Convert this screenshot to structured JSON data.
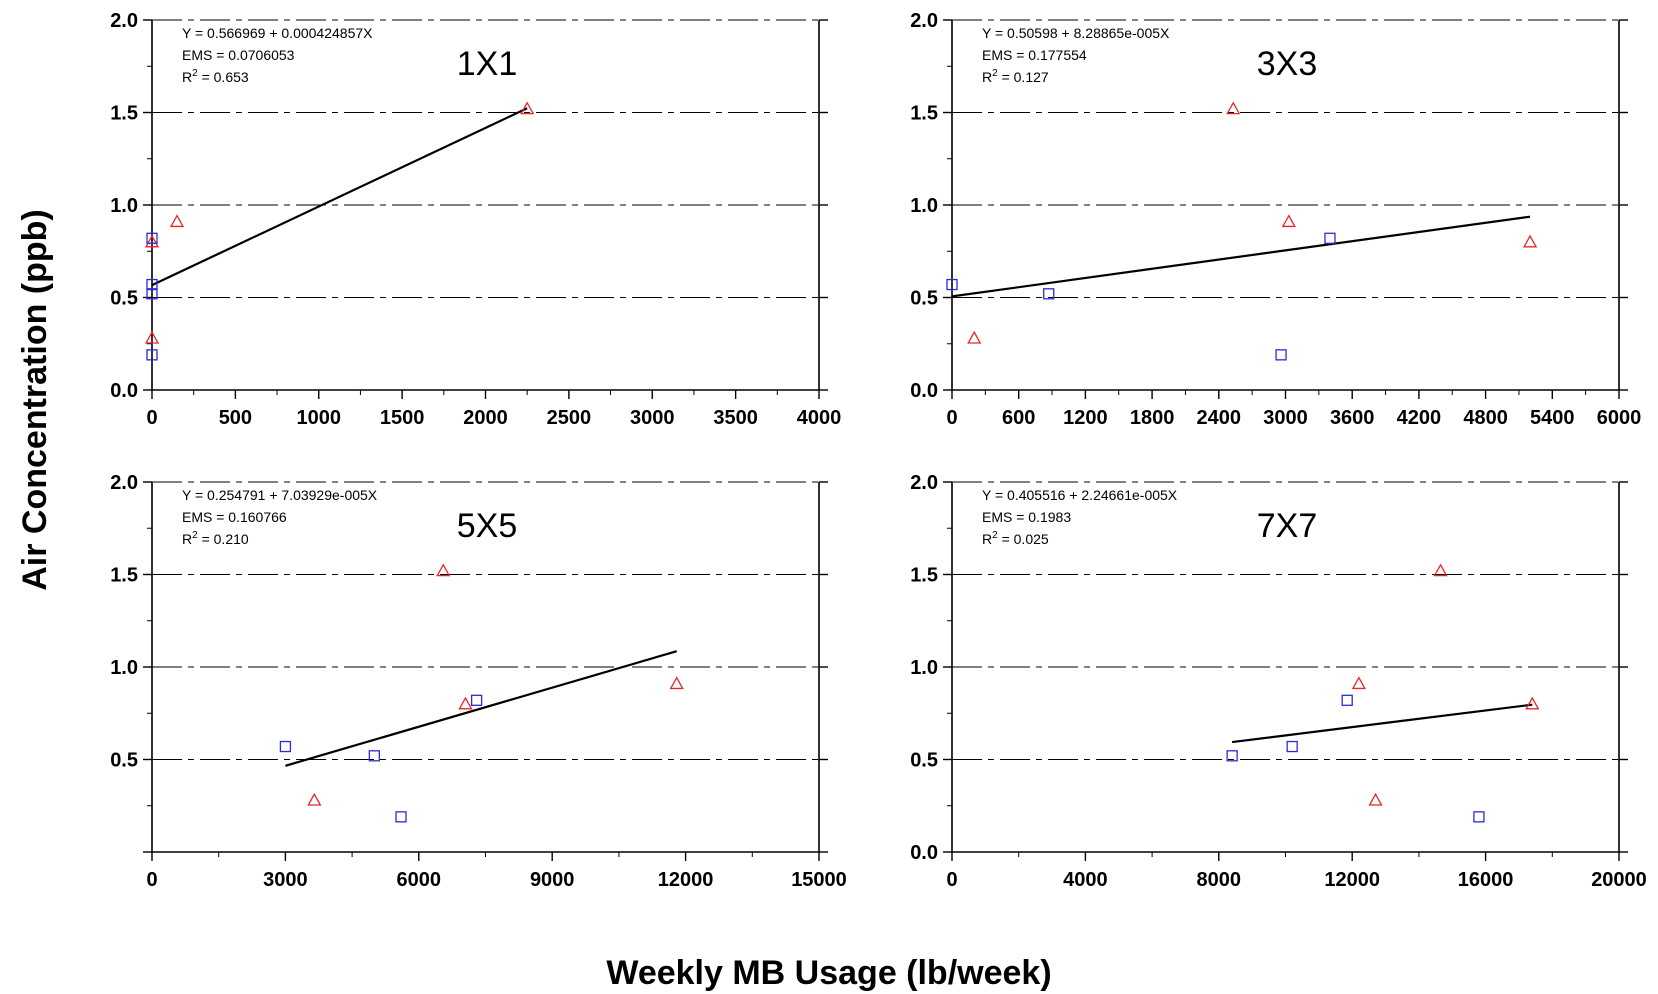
{
  "figure": {
    "ylabel": "Air Concentration (ppb)",
    "xlabel": "Weekly MB Usage (lb/week)"
  },
  "chart_data": [
    {
      "type": "scatter",
      "title": "1X1",
      "equation": "Y = 0.566969 + 0.000424857X",
      "ems": "EMS = 0.0706053",
      "r2_prefix": "R",
      "r2_sup": "2",
      "r2_value": " = 0.653",
      "xlim": [
        0,
        4000
      ],
      "ylim": [
        0,
        2
      ],
      "xticks": [
        0,
        500,
        1000,
        1500,
        2000,
        2500,
        3000,
        3500,
        4000
      ],
      "xtick_labels": [
        "0",
        "500",
        "1000",
        "1500",
        "2000",
        "2500",
        "3000",
        "3500",
        "4000"
      ],
      "yticks": [
        0,
        0.5,
        1,
        1.5,
        2
      ],
      "ytick_labels": [
        "0.0",
        "0.5",
        "1.0",
        "1.5",
        "2.0"
      ],
      "grid": "dashed horizontal",
      "triangles": {
        "color": "#e8262a",
        "points": [
          [
            0,
            0.8
          ],
          [
            150,
            0.91
          ],
          [
            0,
            0.28
          ],
          [
            2250,
            1.52
          ]
        ]
      },
      "squares": {
        "color": "#2b2bd8",
        "points": [
          [
            0,
            0.82
          ],
          [
            0,
            0.57
          ],
          [
            0,
            0.52
          ],
          [
            0,
            0.19
          ]
        ]
      },
      "fit": {
        "intercept": 0.566969,
        "slope": 0.000424857,
        "x_range": [
          0,
          2250
        ]
      }
    },
    {
      "type": "scatter",
      "title": "3X3",
      "equation": "Y = 0.50598 + 8.28865e-005X",
      "ems": "EMS = 0.177554",
      "r2_prefix": "R",
      "r2_sup": "2",
      "r2_value": " = 0.127",
      "xlim": [
        0,
        6000
      ],
      "ylim": [
        0,
        2
      ],
      "xticks": [
        0,
        600,
        1200,
        1800,
        2400,
        3000,
        3600,
        4200,
        4800,
        5400,
        6000
      ],
      "xtick_labels": [
        "0",
        "600",
        "1200",
        "1800",
        "2400",
        "3000",
        "3600",
        "4200",
        "4800",
        "5400",
        "6000"
      ],
      "yticks": [
        0,
        0.5,
        1,
        1.5,
        2
      ],
      "ytick_labels": [
        "0.0",
        "0.5",
        "1.0",
        "1.5",
        "2.0"
      ],
      "grid": "dashed horizontal",
      "triangles": {
        "color": "#e8262a",
        "points": [
          [
            2530,
            1.52
          ],
          [
            3030,
            0.91
          ],
          [
            5200,
            0.8
          ],
          [
            200,
            0.28
          ]
        ]
      },
      "squares": {
        "color": "#2b2bd8",
        "points": [
          [
            3400,
            0.82
          ],
          [
            0,
            0.57
          ],
          [
            870,
            0.52
          ],
          [
            2960,
            0.19
          ]
        ]
      },
      "fit": {
        "intercept": 0.50598,
        "slope": 8.28865e-05,
        "x_range": [
          0,
          5200
        ]
      }
    },
    {
      "type": "scatter",
      "title": "5X5",
      "equation": "Y = 0.254791 + 7.03929e-005X",
      "ems": "EMS = 0.160766",
      "r2_prefix": "R",
      "r2_sup": "2",
      "r2_value": " = 0.210",
      "xlim": [
        0,
        15000
      ],
      "ylim": [
        0,
        2
      ],
      "xticks": [
        0,
        3000,
        6000,
        9000,
        12000,
        15000
      ],
      "xtick_labels": [
        "0",
        "3000",
        "6000",
        "9000",
        "12000",
        "15000"
      ],
      "yticks": [
        0.5,
        1,
        1.5,
        2
      ],
      "ytick_labels": [
        "0.5",
        "1.0",
        "1.5",
        "2.0"
      ],
      "grid": "dashed horizontal",
      "triangles": {
        "color": "#e8262a",
        "points": [
          [
            6550,
            1.52
          ],
          [
            7050,
            0.8
          ],
          [
            11800,
            0.91
          ],
          [
            3650,
            0.28
          ]
        ]
      },
      "squares": {
        "color": "#2b2bd8",
        "points": [
          [
            7300,
            0.82
          ],
          [
            3000,
            0.57
          ],
          [
            5000,
            0.52
          ],
          [
            5600,
            0.19
          ]
        ]
      },
      "fit": {
        "intercept": 0.254791,
        "slope": 7.03929e-05,
        "x_range": [
          3000,
          11800
        ]
      }
    },
    {
      "type": "scatter",
      "title": "7X7",
      "equation": "Y = 0.405516 + 2.24661e-005X",
      "ems": "EMS = 0.1983",
      "r2_prefix": "R",
      "r2_sup": "2",
      "r2_value": " = 0.025",
      "xlim": [
        0,
        20000
      ],
      "ylim": [
        0,
        2
      ],
      "xticks": [
        0,
        4000,
        8000,
        12000,
        16000,
        20000
      ],
      "xtick_labels": [
        "0",
        "4000",
        "8000",
        "12000",
        "16000",
        "20000"
      ],
      "yticks": [
        0,
        0.5,
        1,
        1.5,
        2
      ],
      "ytick_labels": [
        "0.0",
        "0.5",
        "1.0",
        "1.5",
        "2.0"
      ],
      "grid": "dashed horizontal",
      "triangles": {
        "color": "#e8262a",
        "points": [
          [
            14650,
            1.52
          ],
          [
            12200,
            0.91
          ],
          [
            17400,
            0.8
          ],
          [
            12700,
            0.28
          ]
        ]
      },
      "squares": {
        "color": "#2b2bd8",
        "points": [
          [
            11850,
            0.82
          ],
          [
            10200,
            0.57
          ],
          [
            8400,
            0.52
          ],
          [
            15800,
            0.19
          ]
        ]
      },
      "fit": {
        "intercept": 0.405516,
        "slope": 2.24661e-05,
        "x_range": [
          8400,
          17400
        ]
      }
    }
  ]
}
